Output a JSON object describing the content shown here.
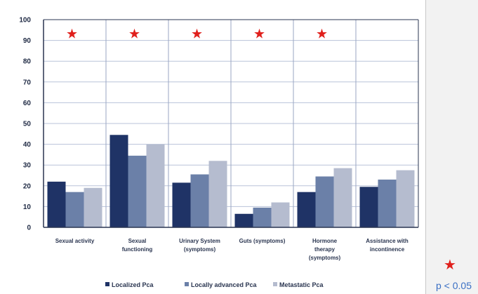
{
  "chart_data": {
    "type": "bar",
    "title": "",
    "xlabel": "",
    "ylabel": "",
    "ylim": [
      0,
      100
    ],
    "yticks": [
      0,
      10,
      20,
      30,
      40,
      50,
      60,
      70,
      80,
      90,
      100
    ],
    "grid": true,
    "legend_position": "bottom",
    "categories": [
      [
        "Sexual activity"
      ],
      [
        "Sexual",
        "functioning"
      ],
      [
        "Urinary System",
        "(symptoms)"
      ],
      [
        "Guts (symptoms)"
      ],
      [
        "Hormone",
        "therapy",
        "(symptoms)"
      ],
      [
        "Assistance with",
        "incontinence"
      ]
    ],
    "series": [
      {
        "name": "Localized Pca",
        "color": "#1f3366",
        "values": [
          22,
          44.5,
          21.5,
          6.5,
          17,
          19.5
        ]
      },
      {
        "name": "Locally advanced Pca",
        "color": "#6b80a8",
        "values": [
          17,
          34.5,
          25.5,
          9.5,
          24.5,
          23
        ]
      },
      {
        "name": "Metastatic Pca",
        "color": "#b5bccf",
        "values": [
          19,
          40,
          32,
          12,
          28.5,
          27.5
        ]
      }
    ],
    "significant": [
      true,
      true,
      true,
      true,
      true,
      false
    ],
    "significance_marker_color": "#e0201c"
  },
  "significance_note": {
    "star": "★",
    "label": "p < 0.05"
  }
}
